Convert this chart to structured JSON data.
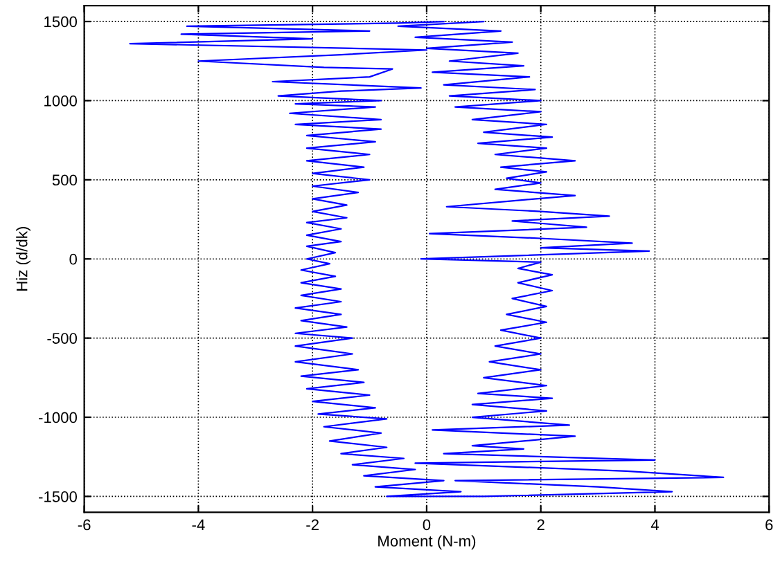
{
  "chart_data": {
    "type": "line",
    "xlabel": "Moment (N-m)",
    "ylabel": "Hiz (d/dk)",
    "xlim": [
      -6,
      6
    ],
    "xticks": [
      -6,
      -4,
      -2,
      0,
      2,
      4,
      6
    ],
    "ylim": [
      -1600,
      1600
    ],
    "yticks": [
      -1500,
      -1000,
      -500,
      0,
      500,
      1000,
      1500
    ],
    "grid": true,
    "legend": false,
    "marker": "none",
    "line_style": "solid",
    "x": [
      1.0,
      -0.5,
      1.3,
      -0.2,
      1.5,
      0.0,
      1.6,
      0.4,
      1.7,
      0.1,
      1.8,
      0.3,
      1.9,
      0.4,
      2.0,
      0.5,
      2.0,
      0.8,
      2.1,
      1.0,
      2.2,
      0.9,
      2.1,
      1.2,
      2.6,
      1.3,
      2.1,
      1.4,
      2.0,
      1.2,
      2.6,
      1.6,
      0.35,
      2.0,
      3.2,
      1.5,
      2.8,
      0.05,
      2.0,
      3.6,
      2.0,
      3.9,
      -0.1,
      2.0,
      1.6,
      2.2,
      1.6,
      2.2,
      1.5,
      2.1,
      1.4,
      2.1,
      1.3,
      2.0,
      1.2,
      2.0,
      1.1,
      2.0,
      1.0,
      2.1,
      0.9,
      2.2,
      0.8,
      2.1,
      0.8,
      2.5,
      0.1,
      2.6,
      0.8,
      1.7,
      0.3,
      4.0,
      -0.2,
      3.5,
      5.2,
      0.5,
      3.0,
      4.3,
      1.0,
      -0.7,
      0.6,
      -0.9,
      0.3,
      -1.1,
      -0.2,
      -1.3,
      -0.4,
      -1.5,
      -0.7,
      -1.7,
      -0.8,
      -1.8,
      -0.7,
      -1.9,
      -0.9,
      -2.0,
      -1.0,
      -2.1,
      -1.1,
      -2.2,
      -1.2,
      -2.3,
      -1.3,
      -2.3,
      -1.3,
      -2.3,
      -1.4,
      -2.2,
      -1.5,
      -2.3,
      -1.5,
      -2.2,
      -1.5,
      -2.2,
      -1.6,
      -2.2,
      -1.7,
      -2.1,
      -1.6,
      -2.1,
      -1.5,
      -2.1,
      -1.5,
      -2.1,
      -1.4,
      -2.0,
      -1.4,
      -2.0,
      -1.2,
      -2.0,
      -1.0,
      -2.0,
      -1.1,
      -2.1,
      -1.0,
      -2.1,
      -0.9,
      -2.1,
      -0.8,
      -2.3,
      -0.8,
      -2.4,
      -0.9,
      -2.3,
      -0.8,
      -2.6,
      -1.5,
      -0.1,
      -2.7,
      -1.0,
      -0.6,
      -1.8,
      -4.0,
      -1.5,
      0.0,
      -5.2,
      -2.0,
      -4.3,
      -1.0,
      -4.2,
      -0.5,
      0.3
    ],
    "series": [
      {
        "color": "#0000ff",
        "values": [
          1500,
          1470,
          1440,
          1400,
          1370,
          1330,
          1300,
          1250,
          1220,
          1180,
          1150,
          1100,
          1070,
          1030,
          1000,
          960,
          930,
          880,
          850,
          800,
          770,
          730,
          700,
          660,
          620,
          580,
          550,
          510,
          480,
          440,
          400,
          370,
          330,
          300,
          270,
          240,
          200,
          160,
          130,
          100,
          70,
          50,
          0,
          -20,
          -60,
          -100,
          -150,
          -200,
          -250,
          -300,
          -350,
          -400,
          -450,
          -500,
          -550,
          -600,
          -650,
          -700,
          -750,
          -800,
          -850,
          -880,
          -920,
          -960,
          -1000,
          -1050,
          -1080,
          -1120,
          -1180,
          -1200,
          -1230,
          -1270,
          -1290,
          -1340,
          -1380,
          -1400,
          -1440,
          -1470,
          -1500,
          -1500,
          -1470,
          -1440,
          -1400,
          -1370,
          -1330,
          -1300,
          -1260,
          -1230,
          -1190,
          -1150,
          -1100,
          -1060,
          -1010,
          -980,
          -940,
          -900,
          -860,
          -820,
          -780,
          -740,
          -700,
          -650,
          -600,
          -550,
          -500,
          -470,
          -430,
          -390,
          -350,
          -310,
          -270,
          -230,
          -190,
          -150,
          -110,
          -70,
          -30,
          0,
          40,
          80,
          110,
          150,
          190,
          230,
          260,
          300,
          340,
          380,
          420,
          460,
          500,
          540,
          580,
          620,
          660,
          700,
          740,
          780,
          820,
          850,
          880,
          920,
          960,
          980,
          1000,
          1030,
          1060,
          1080,
          1120,
          1150,
          1200,
          1210,
          1250,
          1290,
          1320,
          1360,
          1390,
          1420,
          1440,
          1470,
          1490,
          1500
        ]
      }
    ]
  }
}
